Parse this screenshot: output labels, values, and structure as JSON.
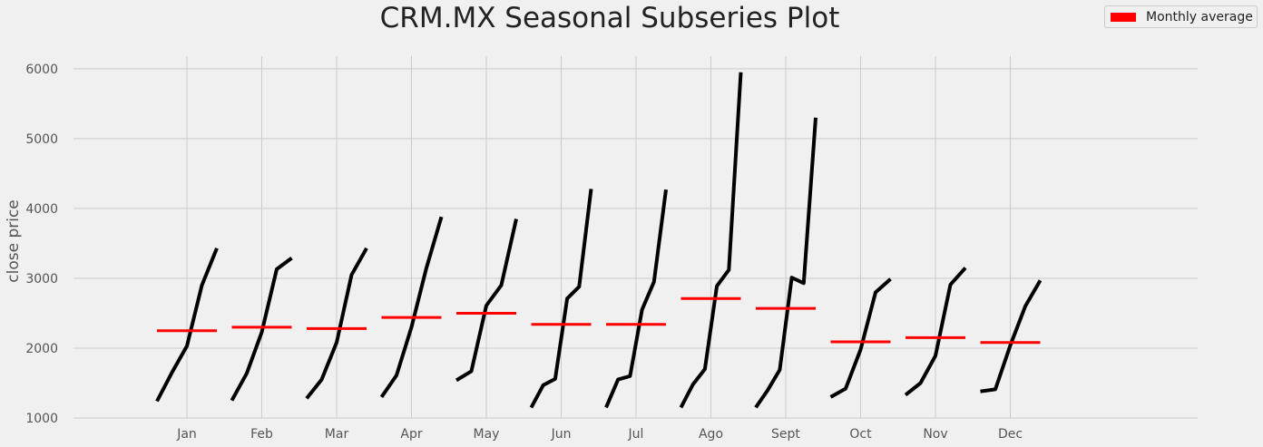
{
  "chart_data": {
    "type": "line",
    "title": "CRM.MX Seasonal Subseries Plot",
    "xlabel": "",
    "ylabel": "close price",
    "ylim": [
      1000,
      6180
    ],
    "yticks": [
      1000,
      2000,
      3000,
      4000,
      5000,
      6000
    ],
    "grid": true,
    "legend": {
      "label": "Monthly average",
      "placement": "top-right"
    },
    "colors": {
      "series": "#000000",
      "average": "#ff0000",
      "background": "#f0f0f0",
      "grid": "#cbcbcb"
    },
    "months": [
      {
        "name": "Jan",
        "values": [
          1240,
          1650,
          2030,
          2900,
          3430
        ],
        "mean": 2250
      },
      {
        "name": "Feb",
        "values": [
          1250,
          1640,
          2230,
          3130,
          3290
        ],
        "mean": 2300
      },
      {
        "name": "Mar",
        "values": [
          1280,
          1550,
          2080,
          3050,
          3430
        ],
        "mean": 2280
      },
      {
        "name": "Apr",
        "values": [
          1300,
          1610,
          2300,
          3150,
          3880
        ],
        "mean": 2440
      },
      {
        "name": "May",
        "values": [
          1540,
          1670,
          2610,
          2900,
          3850
        ],
        "mean": 2500
      },
      {
        "name": "Jun",
        "values": [
          1150,
          1470,
          1560,
          2710,
          2880,
          4280
        ],
        "mean": 2340
      },
      {
        "name": "Jul",
        "values": [
          1150,
          1550,
          1600,
          2550,
          2950,
          4270
        ],
        "mean": 2340
      },
      {
        "name": "Ago",
        "values": [
          1150,
          1480,
          1700,
          2890,
          3120,
          5950
        ],
        "mean": 2710
      },
      {
        "name": "Sept",
        "values": [
          1150,
          1400,
          1690,
          3010,
          2930,
          5300
        ],
        "mean": 2570
      },
      {
        "name": "Oct",
        "values": [
          1300,
          1420,
          1980,
          2800,
          2990
        ],
        "mean": 2090
      },
      {
        "name": "Nov",
        "values": [
          1330,
          1500,
          1890,
          2910,
          3150
        ],
        "mean": 2150
      },
      {
        "name": "Dec",
        "values": [
          1380,
          1410,
          2040,
          2600,
          2970
        ],
        "mean": 2080
      }
    ]
  }
}
